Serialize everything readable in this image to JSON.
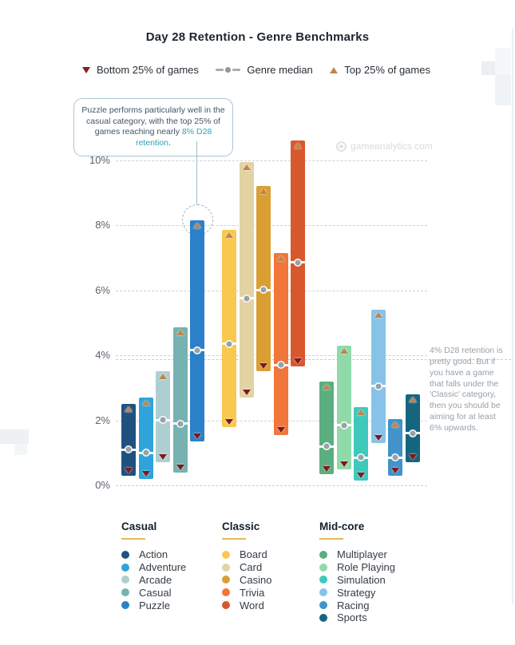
{
  "page": {
    "title": "Day 28 Retention - Genre Benchmarks",
    "watermark": "gameanalytics.com"
  },
  "top_legend": {
    "bottom25": {
      "label": "Bottom 25% of games",
      "color": "#8c1d18"
    },
    "median": {
      "label": "Genre median",
      "color": "#8f979e"
    },
    "top25": {
      "label": "Top 25% of games",
      "color": "#c3854e"
    }
  },
  "callout": {
    "text_before": "Puzzle performs particularly well in the casual category, with the top 25% of games reaching nearly ",
    "highlight": "8% D28 retention",
    "text_after": ".",
    "highlight_color": "#2fa3b5"
  },
  "side_note": {
    "text": "4% D28 retention is pretty good. But if you have a game that falls under the 'Classic' category, then you should be aiming for at least 6% upwards."
  },
  "chart_data": {
    "type": "bar",
    "variant": "floating-range-bars",
    "title": "Day 28 Retention - Genre Benchmarks",
    "ylim": [
      0,
      10
    ],
    "yticks": [
      0,
      2,
      4,
      6,
      8,
      10
    ],
    "ytick_labels": [
      "0%",
      "2%",
      "4%",
      "6%",
      "8%",
      "10%"
    ],
    "grid": "horizontal-dashed",
    "legend_note": "bar spans bottom 25% to top 25% of games; dot marks genre median; values are D28 retention in percent",
    "groups": [
      {
        "name": "Casual",
        "genres": [
          {
            "label": "Action",
            "color": "#1f517f",
            "low": 0.3,
            "high": 2.5,
            "median": 1.1
          },
          {
            "label": "Adventure",
            "color": "#2ea4da",
            "low": 0.2,
            "high": 2.7,
            "median": 1.0
          },
          {
            "label": "Arcade",
            "color": "#aecfd2",
            "low": 0.7,
            "high": 3.5,
            "median": 2.0
          },
          {
            "label": "Casual",
            "color": "#76b2b1",
            "low": 0.4,
            "high": 4.85,
            "median": 1.9
          },
          {
            "label": "Puzzle",
            "color": "#2c80c9",
            "low": 1.35,
            "high": 8.15,
            "median": 4.15
          }
        ]
      },
      {
        "name": "Classic",
        "genres": [
          {
            "label": "Board",
            "color": "#f8c84f",
            "low": 1.8,
            "high": 7.85,
            "median": 4.35
          },
          {
            "label": "Card",
            "color": "#e3d3a3",
            "low": 2.7,
            "high": 9.95,
            "median": 5.75
          },
          {
            "label": "Casino",
            "color": "#da9e33",
            "low": 3.5,
            "high": 9.2,
            "median": 6.0
          },
          {
            "label": "Trivia",
            "color": "#f0763a",
            "low": 1.55,
            "high": 7.15,
            "median": 3.7
          },
          {
            "label": "Word",
            "color": "#d8582e",
            "low": 3.65,
            "high": 10.6,
            "median": 6.85
          }
        ]
      },
      {
        "name": "Mid-core",
        "genres": [
          {
            "label": "Multiplayer",
            "color": "#5bae80",
            "low": 0.35,
            "high": 3.2,
            "median": 1.2
          },
          {
            "label": "Role Playing",
            "color": "#90daa9",
            "low": 0.5,
            "high": 4.3,
            "median": 1.85
          },
          {
            "label": "Simulation",
            "color": "#3fc8bc",
            "low": 0.15,
            "high": 2.4,
            "median": 0.85
          },
          {
            "label": "Strategy",
            "color": "#87c3e8",
            "low": 1.3,
            "high": 5.4,
            "median": 3.05
          },
          {
            "label": "Racing",
            "color": "#4193c9",
            "low": 0.3,
            "high": 2.05,
            "median": 0.85
          },
          {
            "label": "Sports",
            "color": "#15657f",
            "low": 0.7,
            "high": 2.8,
            "median": 1.6
          }
        ]
      }
    ]
  }
}
